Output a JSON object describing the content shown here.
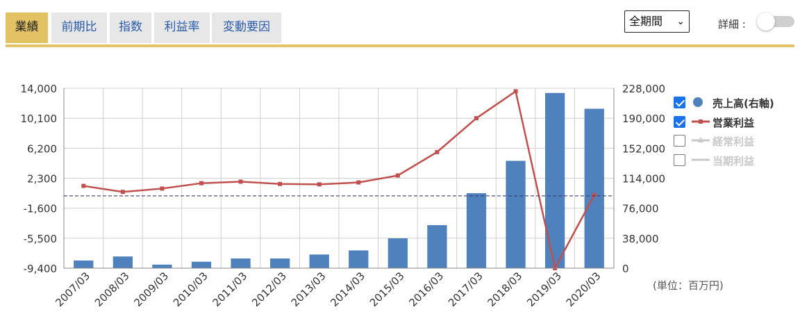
{
  "tabs": [
    {
      "label": "業績",
      "active": true
    },
    {
      "label": "前期比",
      "active": false
    },
    {
      "label": "指数",
      "active": false
    },
    {
      "label": "利益率",
      "active": false
    },
    {
      "label": "変動要因",
      "active": false
    }
  ],
  "period_select": {
    "value": "全期間"
  },
  "detail_toggle": {
    "label": "詳細 :",
    "on": false
  },
  "unit_note": "(単位：百万円)",
  "legend": [
    {
      "label": "売上高(右軸)",
      "checked": true,
      "color": "#4f81bd",
      "symbol": "circle-icon"
    },
    {
      "label": "営業利益",
      "checked": true,
      "color": "#c0504d",
      "symbol": "line-square-icon"
    },
    {
      "label": "経常利益",
      "checked": false,
      "color": "#c8c8c8",
      "symbol": "line-triangle-icon"
    },
    {
      "label": "当期利益",
      "checked": false,
      "color": "#c8c8c8",
      "symbol": "line-icon"
    }
  ],
  "chart_data": {
    "type": "bar+line",
    "categories": [
      "2007/03",
      "2008/03",
      "2009/03",
      "2010/03",
      "2011/03",
      "2012/03",
      "2013/03",
      "2014/03",
      "2015/03",
      "2016/03",
      "2017/03",
      "2018/03",
      "2019/03",
      "2020/03"
    ],
    "series": [
      {
        "name": "売上高(右軸)",
        "type": "bar",
        "axis": "right",
        "color": "#4f81bd",
        "values": [
          9700,
          14800,
          4500,
          8200,
          12300,
          12300,
          17300,
          22500,
          37800,
          54500,
          95000,
          136000,
          222000,
          202000
        ]
      },
      {
        "name": "営業利益",
        "type": "line",
        "axis": "left",
        "color": "#c0504d",
        "values": [
          1300,
          520,
          950,
          1650,
          1850,
          1550,
          1500,
          1750,
          2650,
          5700,
          10100,
          13600,
          -9400,
          100
        ]
      }
    ],
    "y_left": {
      "ticks": [
        "14,000",
        "10,100",
        "6,200",
        "2,300",
        "-1,600",
        "-5,500",
        "-9,400"
      ],
      "range": [
        -9400,
        14000
      ]
    },
    "y_right": {
      "ticks": [
        "228,000",
        "190,000",
        "152,000",
        "114,000",
        "76,000",
        "38,000",
        "0"
      ],
      "range": [
        0,
        228000
      ]
    },
    "zero_line": 0,
    "grid": true,
    "legend_position": "right"
  }
}
